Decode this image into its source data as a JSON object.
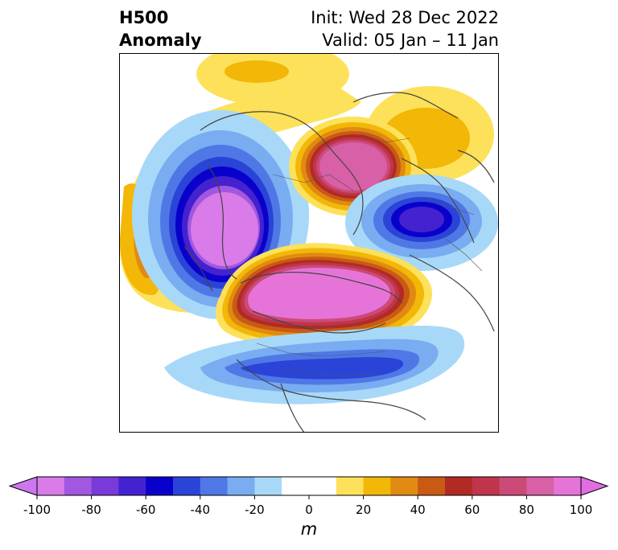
{
  "title": {
    "left_line1": "H500",
    "left_line2": "Anomaly",
    "right_line1": "Init: Wed 28 Dec 2022",
    "right_line2": "Valid: 05 Jan – 11 Jan"
  },
  "colorbar": {
    "label": "m",
    "ticks": [
      "-100",
      "-80",
      "-60",
      "-40",
      "-20",
      "0",
      "20",
      "40",
      "60",
      "80",
      "100"
    ],
    "bins": [
      "#d97be8",
      "#a257e0",
      "#7a3ad9",
      "#4422d0",
      "#0a00cc",
      "#2a44d8",
      "#4f78e6",
      "#79acf0",
      "#a8d8f8",
      "#ffffff",
      "#ffffff",
      "#fde15a",
      "#f2b707",
      "#e08a12",
      "#c85a14",
      "#b22a24",
      "#c0354b",
      "#cc4a77",
      "#d760a7",
      "#e674d8"
    ],
    "extend_low": "#cc77ee",
    "extend_high": "#e16ee0"
  },
  "colors": {
    "coast": "#444444",
    "frame": "#000000"
  }
}
